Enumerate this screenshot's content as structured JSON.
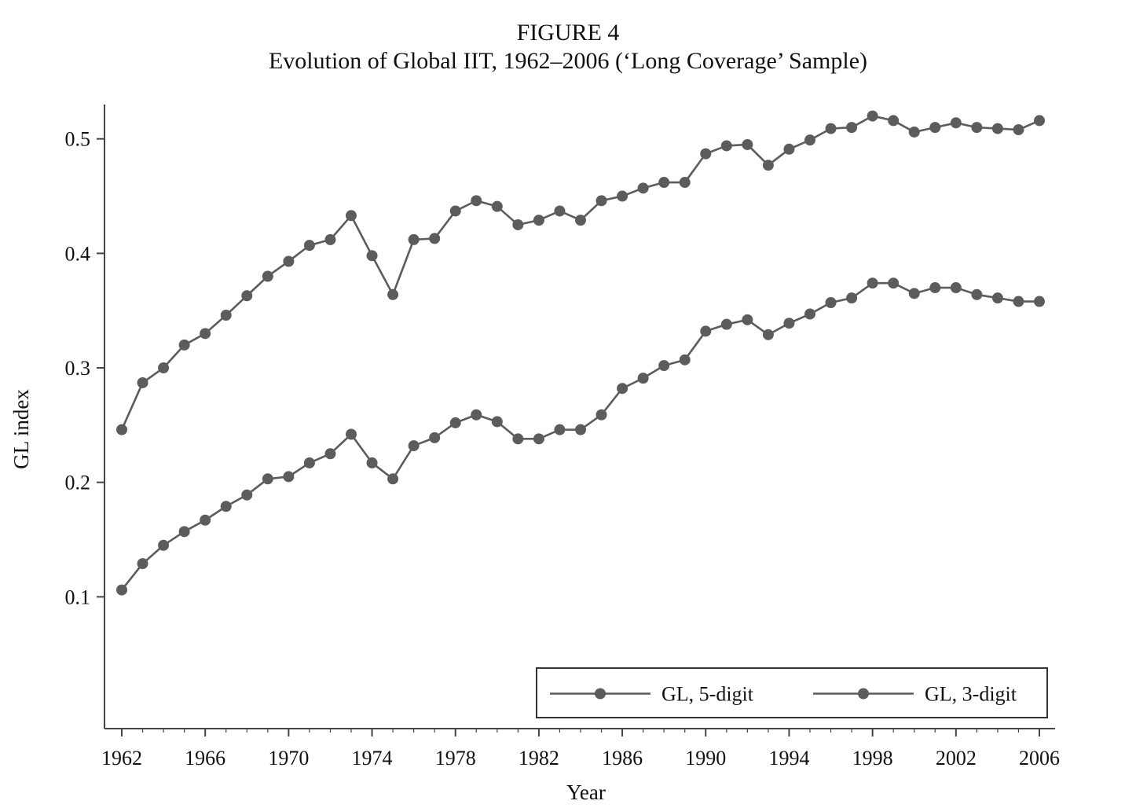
{
  "figure": {
    "label": "FIGURE 4",
    "title": "Evolution of Global IIT, 1962–2006 (‘Long Coverage’ Sample)"
  },
  "chart_data": {
    "type": "line",
    "title": "Evolution of Global IIT, 1962–2006 (‘Long Coverage’ Sample)",
    "xlabel": "Year",
    "ylabel": "GL index",
    "xlim": [
      1962,
      2006
    ],
    "ylim": [
      0.0,
      0.53
    ],
    "x_ticks": [
      "1962",
      "1966",
      "1970",
      "1974",
      "1978",
      "1982",
      "1986",
      "1990",
      "1994",
      "1998",
      "2002",
      "2006"
    ],
    "y_ticks": [
      "0.1",
      "0.2",
      "0.3",
      "0.4",
      "0.5"
    ],
    "grid": false,
    "legend_position": "bottom-right",
    "colors": {
      "series": "#5c5c5c",
      "axis": "#444444",
      "legend_border": "#333333"
    },
    "x": [
      1962,
      1963,
      1964,
      1965,
      1966,
      1967,
      1968,
      1969,
      1970,
      1971,
      1972,
      1973,
      1974,
      1975,
      1976,
      1977,
      1978,
      1979,
      1980,
      1981,
      1982,
      1983,
      1984,
      1985,
      1986,
      1987,
      1988,
      1989,
      1990,
      1991,
      1992,
      1993,
      1994,
      1995,
      1996,
      1997,
      1998,
      1999,
      2000,
      2001,
      2002,
      2003,
      2004,
      2005,
      2006
    ],
    "series": [
      {
        "name": "GL, 5-digit",
        "values": [
          0.106,
          0.129,
          0.145,
          0.157,
          0.167,
          0.179,
          0.189,
          0.203,
          0.205,
          0.217,
          0.225,
          0.242,
          0.217,
          0.203,
          0.232,
          0.239,
          0.252,
          0.259,
          0.253,
          0.238,
          0.238,
          0.246,
          0.246,
          0.259,
          0.282,
          0.291,
          0.302,
          0.307,
          0.332,
          0.338,
          0.342,
          0.329,
          0.339,
          0.347,
          0.357,
          0.361,
          0.374,
          0.374,
          0.365,
          0.37,
          0.37,
          0.364,
          0.361,
          0.358,
          0.358
        ]
      },
      {
        "name": "GL, 3-digit",
        "values": [
          0.246,
          0.287,
          0.3,
          0.32,
          0.33,
          0.346,
          0.363,
          0.38,
          0.393,
          0.407,
          0.412,
          0.433,
          0.398,
          0.364,
          0.412,
          0.413,
          0.437,
          0.446,
          0.441,
          0.425,
          0.429,
          0.437,
          0.429,
          0.446,
          0.45,
          0.457,
          0.462,
          0.462,
          0.487,
          0.494,
          0.495,
          0.477,
          0.491,
          0.499,
          0.509,
          0.51,
          0.52,
          0.516,
          0.506,
          0.51,
          0.514,
          0.51,
          0.509,
          0.508,
          0.516
        ]
      }
    ]
  }
}
